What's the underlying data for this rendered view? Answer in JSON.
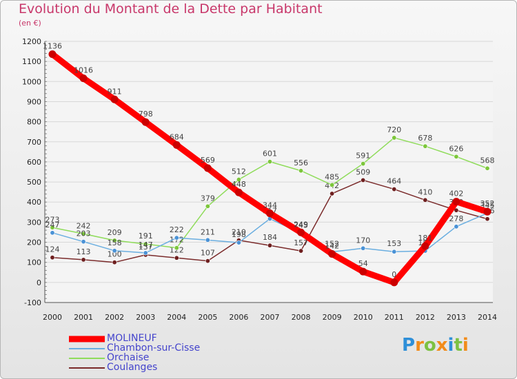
{
  "header": {
    "title": "Evolution du Montant de la Dette par Habitant",
    "subtitle": "(en €)"
  },
  "brand": {
    "text": "Proxiti",
    "letters": [
      {
        "ch": "P",
        "color": "#2e8fd8"
      },
      {
        "ch": "r",
        "color": "#f28c1a"
      },
      {
        "ch": "o",
        "color": "#7dc142"
      },
      {
        "ch": "x",
        "color": "#f28c1a"
      },
      {
        "ch": "i",
        "color": "#2e8fd8"
      },
      {
        "ch": "t",
        "color": "#7dc142"
      },
      {
        "ch": "i",
        "color": "#f28c1a"
      }
    ]
  },
  "chart_data": {
    "type": "line",
    "title": "Evolution du Montant de la Dette par Habitant",
    "subtitle": "(en €)",
    "x": [
      "2000",
      "2001",
      "2002",
      "2003",
      "2004",
      "2005",
      "2006",
      "2007",
      "2008",
      "2009",
      "2010",
      "2011",
      "2012",
      "2013",
      "2014"
    ],
    "ylim": [
      -100,
      1200
    ],
    "yticks": [
      "-100",
      "0",
      "100",
      "200",
      "300",
      "400",
      "500",
      "600",
      "700",
      "800",
      "900",
      "1000",
      "1100",
      "1200"
    ],
    "grid": "horizontal",
    "legend_position": "bottom-left",
    "series": [
      {
        "name": "Coulanges",
        "color": "#7a2a2a",
        "marker": "#6e1f1f",
        "values": [
          124,
          113,
          100,
          137,
          122,
          107,
          210,
          184,
          157,
          442,
          509,
          464,
          410,
          359,
          316
        ],
        "labels": [
          "124",
          "113",
          "100",
          "137",
          "122",
          "107",
          "210",
          "184",
          "157",
          "442",
          "509",
          "464",
          "410",
          "359",
          "316"
        ]
      },
      {
        "name": "Orchaise",
        "color": "#8fdc5a",
        "marker": "#7cc63b",
        "values": [
          273,
          242,
          209,
          191,
          172,
          379,
          512,
          601,
          556,
          485,
          591,
          720,
          678,
          626,
          568
        ],
        "labels": [
          "273",
          "242",
          "209",
          "191",
          "172",
          "379",
          "512",
          "601",
          "556",
          "485",
          "591",
          "720",
          "678",
          "626",
          "568"
        ]
      },
      {
        "name": "Chambon-sur-Cisse",
        "color": "#6aaee0",
        "marker": "#4a92d6",
        "values": [
          247,
          203,
          158,
          147,
          222,
          211,
          198,
          317,
          245,
          152,
          170,
          153,
          157,
          278,
          345
        ],
        "labels": [
          "247",
          "203",
          "158",
          "147",
          "222",
          "211",
          "198",
          "317",
          "245",
          "152",
          "170",
          "153",
          "157",
          "278",
          "345"
        ]
      },
      {
        "name": "MOLINEUF",
        "color": "#ff0000",
        "marker": "#cc0000",
        "values": [
          1136,
          1016,
          911,
          798,
          684,
          569,
          448,
          344,
          249,
          142,
          54,
          0,
          181,
          402,
          352
        ],
        "labels": [
          "1136",
          "1016",
          "911",
          "798",
          "684",
          "569",
          "448",
          "344",
          "249",
          "142",
          "54",
          "0",
          "181",
          "402",
          "352"
        ]
      }
    ]
  },
  "legend": {
    "items": [
      {
        "label": "MOLINEUF",
        "color": "#ff0000",
        "weight": "thick"
      },
      {
        "label": "Chambon-sur-Cisse",
        "color": "#6aaee0",
        "weight": "thin"
      },
      {
        "label": "Orchaise",
        "color": "#8fdc5a",
        "weight": "thin"
      },
      {
        "label": "Coulanges",
        "color": "#7a2a2a",
        "weight": "thin"
      }
    ]
  }
}
